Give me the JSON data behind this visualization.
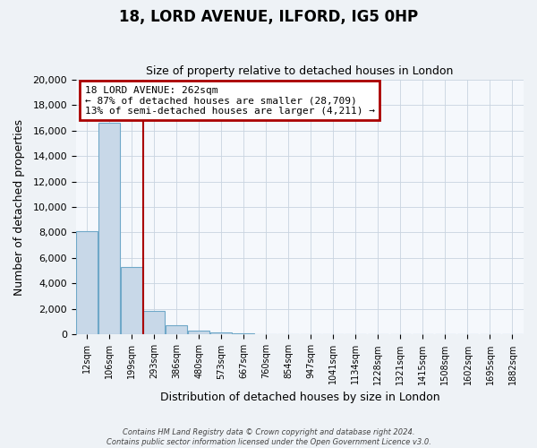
{
  "title": "18, LORD AVENUE, ILFORD, IG5 0HP",
  "subtitle": "Size of property relative to detached houses in London",
  "xlabel": "Distribution of detached houses by size in London",
  "ylabel": "Number of detached properties",
  "bar_values": [
    8100,
    16600,
    5300,
    1850,
    750,
    300,
    200,
    130,
    0,
    0,
    0,
    0,
    0,
    0,
    0,
    0,
    0,
    0,
    0,
    0
  ],
  "bar_labels": [
    "12sqm",
    "106sqm",
    "199sqm",
    "293sqm",
    "386sqm",
    "480sqm",
    "573sqm",
    "667sqm",
    "760sqm",
    "854sqm",
    "947sqm",
    "1041sqm",
    "1134sqm",
    "1228sqm",
    "1321sqm",
    "1415sqm",
    "1508sqm",
    "1602sqm",
    "1695sqm",
    "1882sqm"
  ],
  "bar_color": "#c8d8e8",
  "bar_edge_color": "#6fa8c8",
  "vline_pos": 2.5,
  "vline_color": "#aa0000",
  "ylim": [
    0,
    20000
  ],
  "yticks": [
    0,
    2000,
    4000,
    6000,
    8000,
    10000,
    12000,
    14000,
    16000,
    18000,
    20000
  ],
  "annotation_title": "18 LORD AVENUE: 262sqm",
  "annotation_line1": "← 87% of detached houses are smaller (28,709)",
  "annotation_line2": "13% of semi-detached houses are larger (4,211) →",
  "annotation_box_edgecolor": "#aa0000",
  "footer1": "Contains HM Land Registry data © Crown copyright and database right 2024.",
  "footer2": "Contains public sector information licensed under the Open Government Licence v3.0.",
  "bg_color": "#eef2f6",
  "plot_bg_color": "#f5f8fc",
  "grid_color": "#c8d4e0"
}
